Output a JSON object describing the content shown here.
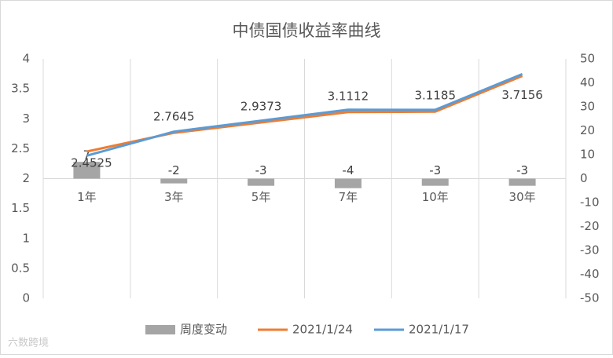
{
  "chart_data": {
    "type": "bar-line",
    "title": "中债国债收益率曲线",
    "categories": [
      "1年",
      "3年",
      "5年",
      "7年",
      "10年",
      "30年"
    ],
    "series": [
      {
        "name": "周度变动",
        "type": "bar",
        "axis": "y2",
        "color": "#a5a5a5",
        "values": [
          7,
          -2,
          -3,
          -4,
          -3,
          -3
        ]
      },
      {
        "name": "2021/1/24",
        "type": "line",
        "color": "#ed7d31",
        "values": [
          2.4525,
          2.7645,
          2.9373,
          3.1112,
          3.1185,
          3.7156
        ]
      },
      {
        "name": "2021/1/17",
        "type": "line",
        "color": "#5b9bd5",
        "values": [
          2.3825,
          2.7845,
          2.9673,
          3.1512,
          3.1485,
          3.7456
        ]
      }
    ],
    "ylim": [
      0,
      4
    ],
    "yticks": [
      0,
      0.5,
      1,
      1.5,
      2,
      2.5,
      3,
      3.5,
      4
    ],
    "y2lim": [
      -50,
      50
    ],
    "y2ticks": [
      -50,
      -40,
      -30,
      -20,
      -10,
      0,
      10,
      20,
      30,
      40,
      50
    ],
    "legend": "bottom",
    "watermark": "六数跨境"
  }
}
